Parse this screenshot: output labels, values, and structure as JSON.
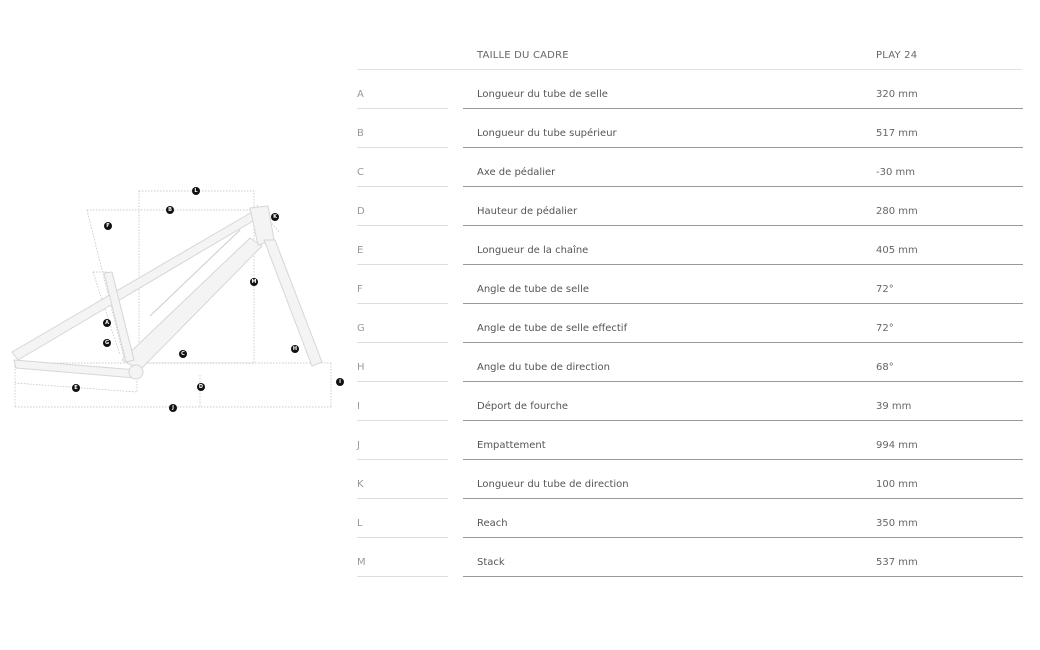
{
  "table": {
    "header_label": "TAILLE DU CADRE",
    "header_size": "PLAY 24",
    "rows": [
      {
        "letter": "A",
        "label": "Longueur du tube de selle",
        "value": "320 mm"
      },
      {
        "letter": "B",
        "label": "Longueur du tube supérieur",
        "value": "517 mm"
      },
      {
        "letter": "C",
        "label": "Axe de pédalier",
        "value": "-30 mm"
      },
      {
        "letter": "D",
        "label": "Hauteur de pédalier",
        "value": "280 mm"
      },
      {
        "letter": "E",
        "label": "Longueur de la chaîne",
        "value": "405 mm"
      },
      {
        "letter": "F",
        "label": "Angle de tube de selle",
        "value": "72°"
      },
      {
        "letter": "G",
        "label": "Angle de tube de selle effectif",
        "value": "72°"
      },
      {
        "letter": "H",
        "label": "Angle du tube de direction",
        "value": "68°"
      },
      {
        "letter": "I",
        "label": "Déport de fourche",
        "value": "39 mm"
      },
      {
        "letter": "J",
        "label": "Empattement",
        "value": "994 mm"
      },
      {
        "letter": "K",
        "label": "Longueur du tube de direction",
        "value": "100 mm"
      },
      {
        "letter": "L",
        "label": "Reach",
        "value": "350 mm"
      },
      {
        "letter": "M",
        "label": "Stack",
        "value": "537 mm"
      }
    ]
  },
  "diagram": {
    "labels": [
      "L",
      "B",
      "K",
      "F",
      "M",
      "A",
      "G",
      "C",
      "H",
      "I",
      "E",
      "D",
      "J"
    ]
  }
}
